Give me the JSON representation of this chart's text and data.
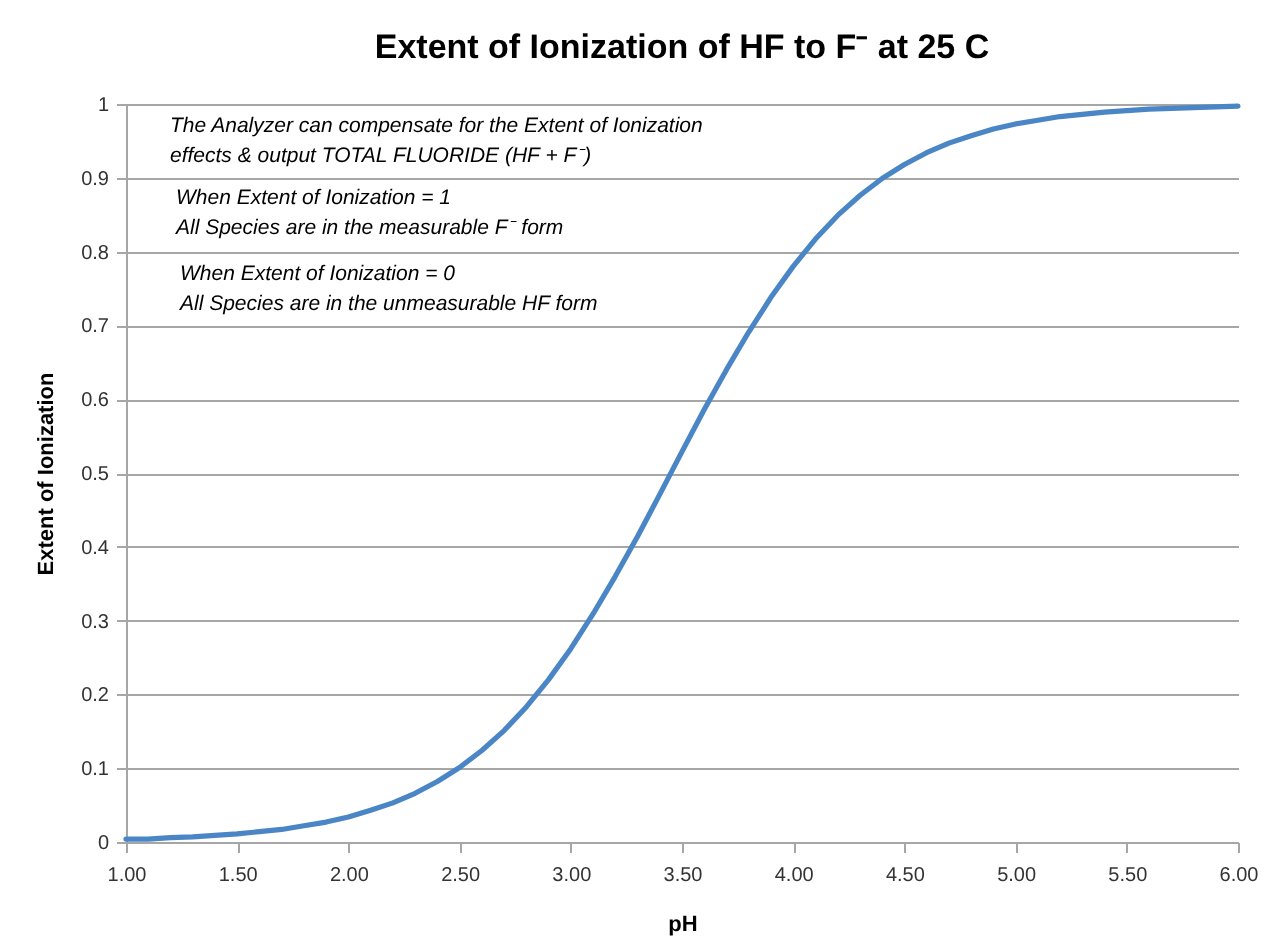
{
  "chart_data": {
    "type": "line",
    "title": "Extent of Ionization of HF to F⁻ at 25 C",
    "xlabel": "pH",
    "ylabel": "Extent of Ionization",
    "annotations": [
      "The Analyzer can compensate for the Extent of Ionization\neffects & output TOTAL FLUORIDE (HF + F⁻)",
      "When Extent of Ionization = 1\nAll Species are in the measurable F⁻ form",
      "When Extent of Ionization = 0\nAll Species are in the unmeasurable HF form"
    ],
    "x": [
      1.0,
      1.1,
      1.2,
      1.3,
      1.4,
      1.5,
      1.6,
      1.7,
      1.8,
      1.9,
      2.0,
      2.1,
      2.2,
      2.3,
      2.4,
      2.5,
      2.6,
      2.7,
      2.8,
      2.9,
      3.0,
      3.1,
      3.2,
      3.3,
      3.4,
      3.5,
      3.6,
      3.7,
      3.8,
      3.9,
      4.0,
      4.1,
      4.2,
      4.3,
      4.4,
      4.5,
      4.6,
      4.7,
      4.8,
      4.9,
      5.0,
      5.1,
      5.2,
      5.3,
      5.4,
      5.5,
      5.6,
      5.7,
      5.8,
      5.9,
      6.0
    ],
    "series": [
      {
        "color": "#4a86c5",
        "values": [
          0.004,
          0.004,
          0.006,
          0.007,
          0.009,
          0.011,
          0.014,
          0.017,
          0.022,
          0.027,
          0.034,
          0.043,
          0.053,
          0.066,
          0.082,
          0.101,
          0.124,
          0.151,
          0.183,
          0.22,
          0.262,
          0.309,
          0.36,
          0.414,
          0.471,
          0.529,
          0.586,
          0.64,
          0.691,
          0.738,
          0.78,
          0.817,
          0.849,
          0.876,
          0.899,
          0.918,
          0.934,
          0.947,
          0.957,
          0.966,
          0.973,
          0.978,
          0.983,
          0.986,
          0.989,
          0.991,
          0.993,
          0.994,
          0.995,
          0.996,
          0.997
        ]
      }
    ],
    "xlim": [
      1,
      6
    ],
    "xticks": [
      {
        "value": 1,
        "label": "1.00"
      },
      {
        "value": 1.5,
        "label": "1.50"
      },
      {
        "value": 2,
        "label": "2.00"
      },
      {
        "value": 2.5,
        "label": "2.50"
      },
      {
        "value": 3,
        "label": "3.00"
      },
      {
        "value": 3.5,
        "label": "3.50"
      },
      {
        "value": 4,
        "label": "4.00"
      },
      {
        "value": 4.5,
        "label": "4.50"
      },
      {
        "value": 5,
        "label": "5.00"
      },
      {
        "value": 5.5,
        "label": "5.50"
      },
      {
        "value": 6,
        "label": "6.00"
      }
    ],
    "ylim": [
      0,
      1
    ],
    "yticks": [
      0,
      0.1,
      0.2,
      0.3,
      0.4,
      0.5,
      0.6,
      0.7,
      0.8,
      0.9,
      1
    ],
    "grid": "y",
    "marker": "none",
    "line_style": "solid"
  }
}
